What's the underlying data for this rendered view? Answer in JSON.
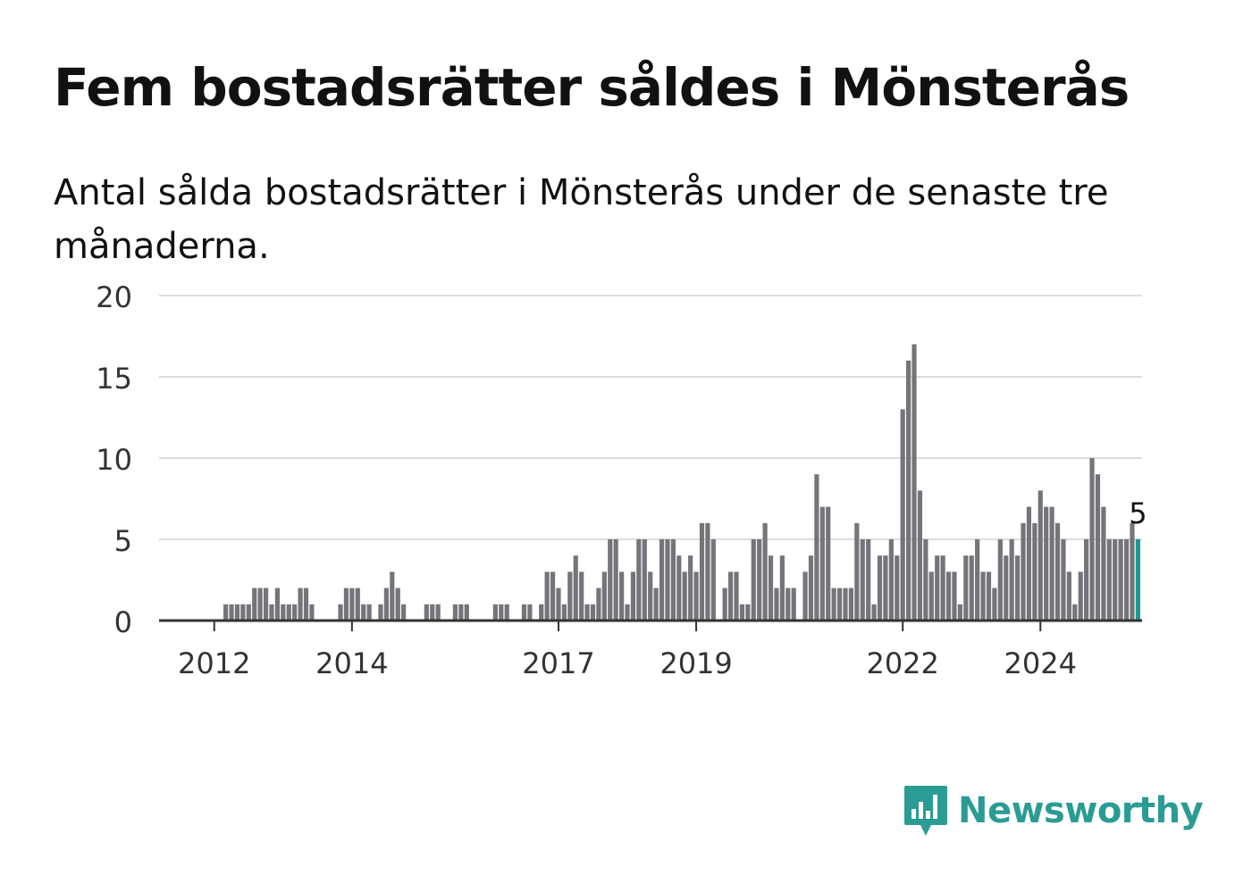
{
  "title": "Fem bostadsrätter såldes i Mönsterås",
  "subtitle": "Antal sålda bostadsrätter i Mönsterås under de senaste tre månaderna.",
  "brand": {
    "name": "Newsworthy",
    "icon": "newsworthy-chart-bubble-icon",
    "color": "#2b9c94"
  },
  "colors": {
    "bar": "#75747a",
    "highlight": "#1b9a96",
    "grid": "#dddddd",
    "axis": "#333333"
  },
  "chart_data": {
    "type": "bar",
    "title": "Fem bostadsrätter såldes i Mönsterås",
    "xlabel": "",
    "ylabel": "",
    "ylim": [
      0,
      20
    ],
    "yticks": [
      0,
      5,
      10,
      15,
      20
    ],
    "grid": true,
    "legend": "none",
    "start_month": "2011-04",
    "xtick_labels": [
      {
        "label": "2012",
        "month": "2012-01"
      },
      {
        "label": "2014",
        "month": "2014-01"
      },
      {
        "label": "2017",
        "month": "2017-01"
      },
      {
        "label": "2019",
        "month": "2019-01"
      },
      {
        "label": "2022",
        "month": "2022-01"
      },
      {
        "label": "2024",
        "month": "2024-01"
      }
    ],
    "highlight_label": "5",
    "values": [
      0,
      0,
      0,
      0,
      0,
      0,
      0,
      0,
      0,
      0,
      0,
      1,
      1,
      1,
      1,
      1,
      2,
      2,
      2,
      1,
      2,
      1,
      1,
      1,
      2,
      2,
      1,
      0,
      0,
      0,
      0,
      1,
      2,
      2,
      2,
      1,
      1,
      0,
      1,
      2,
      3,
      2,
      1,
      0,
      0,
      0,
      1,
      1,
      1,
      0,
      0,
      1,
      1,
      1,
      0,
      0,
      0,
      0,
      1,
      1,
      1,
      0,
      0,
      1,
      1,
      0,
      1,
      3,
      3,
      2,
      1,
      3,
      4,
      3,
      1,
      1,
      2,
      3,
      5,
      5,
      3,
      1,
      3,
      5,
      5,
      3,
      2,
      5,
      5,
      5,
      4,
      3,
      4,
      3,
      6,
      6,
      5,
      0,
      2,
      3,
      3,
      1,
      1,
      5,
      5,
      6,
      4,
      2,
      4,
      2,
      2,
      0,
      3,
      4,
      9,
      7,
      7,
      2,
      2,
      2,
      2,
      6,
      5,
      5,
      1,
      4,
      4,
      5,
      4,
      13,
      16,
      17,
      8,
      5,
      3,
      4,
      4,
      3,
      3,
      1,
      4,
      4,
      5,
      3,
      3,
      2,
      5,
      4,
      5,
      4,
      6,
      7,
      6,
      8,
      7,
      7,
      6,
      5,
      3,
      1,
      3,
      5,
      10,
      9,
      7,
      5,
      5,
      5,
      5,
      6,
      5
    ]
  }
}
